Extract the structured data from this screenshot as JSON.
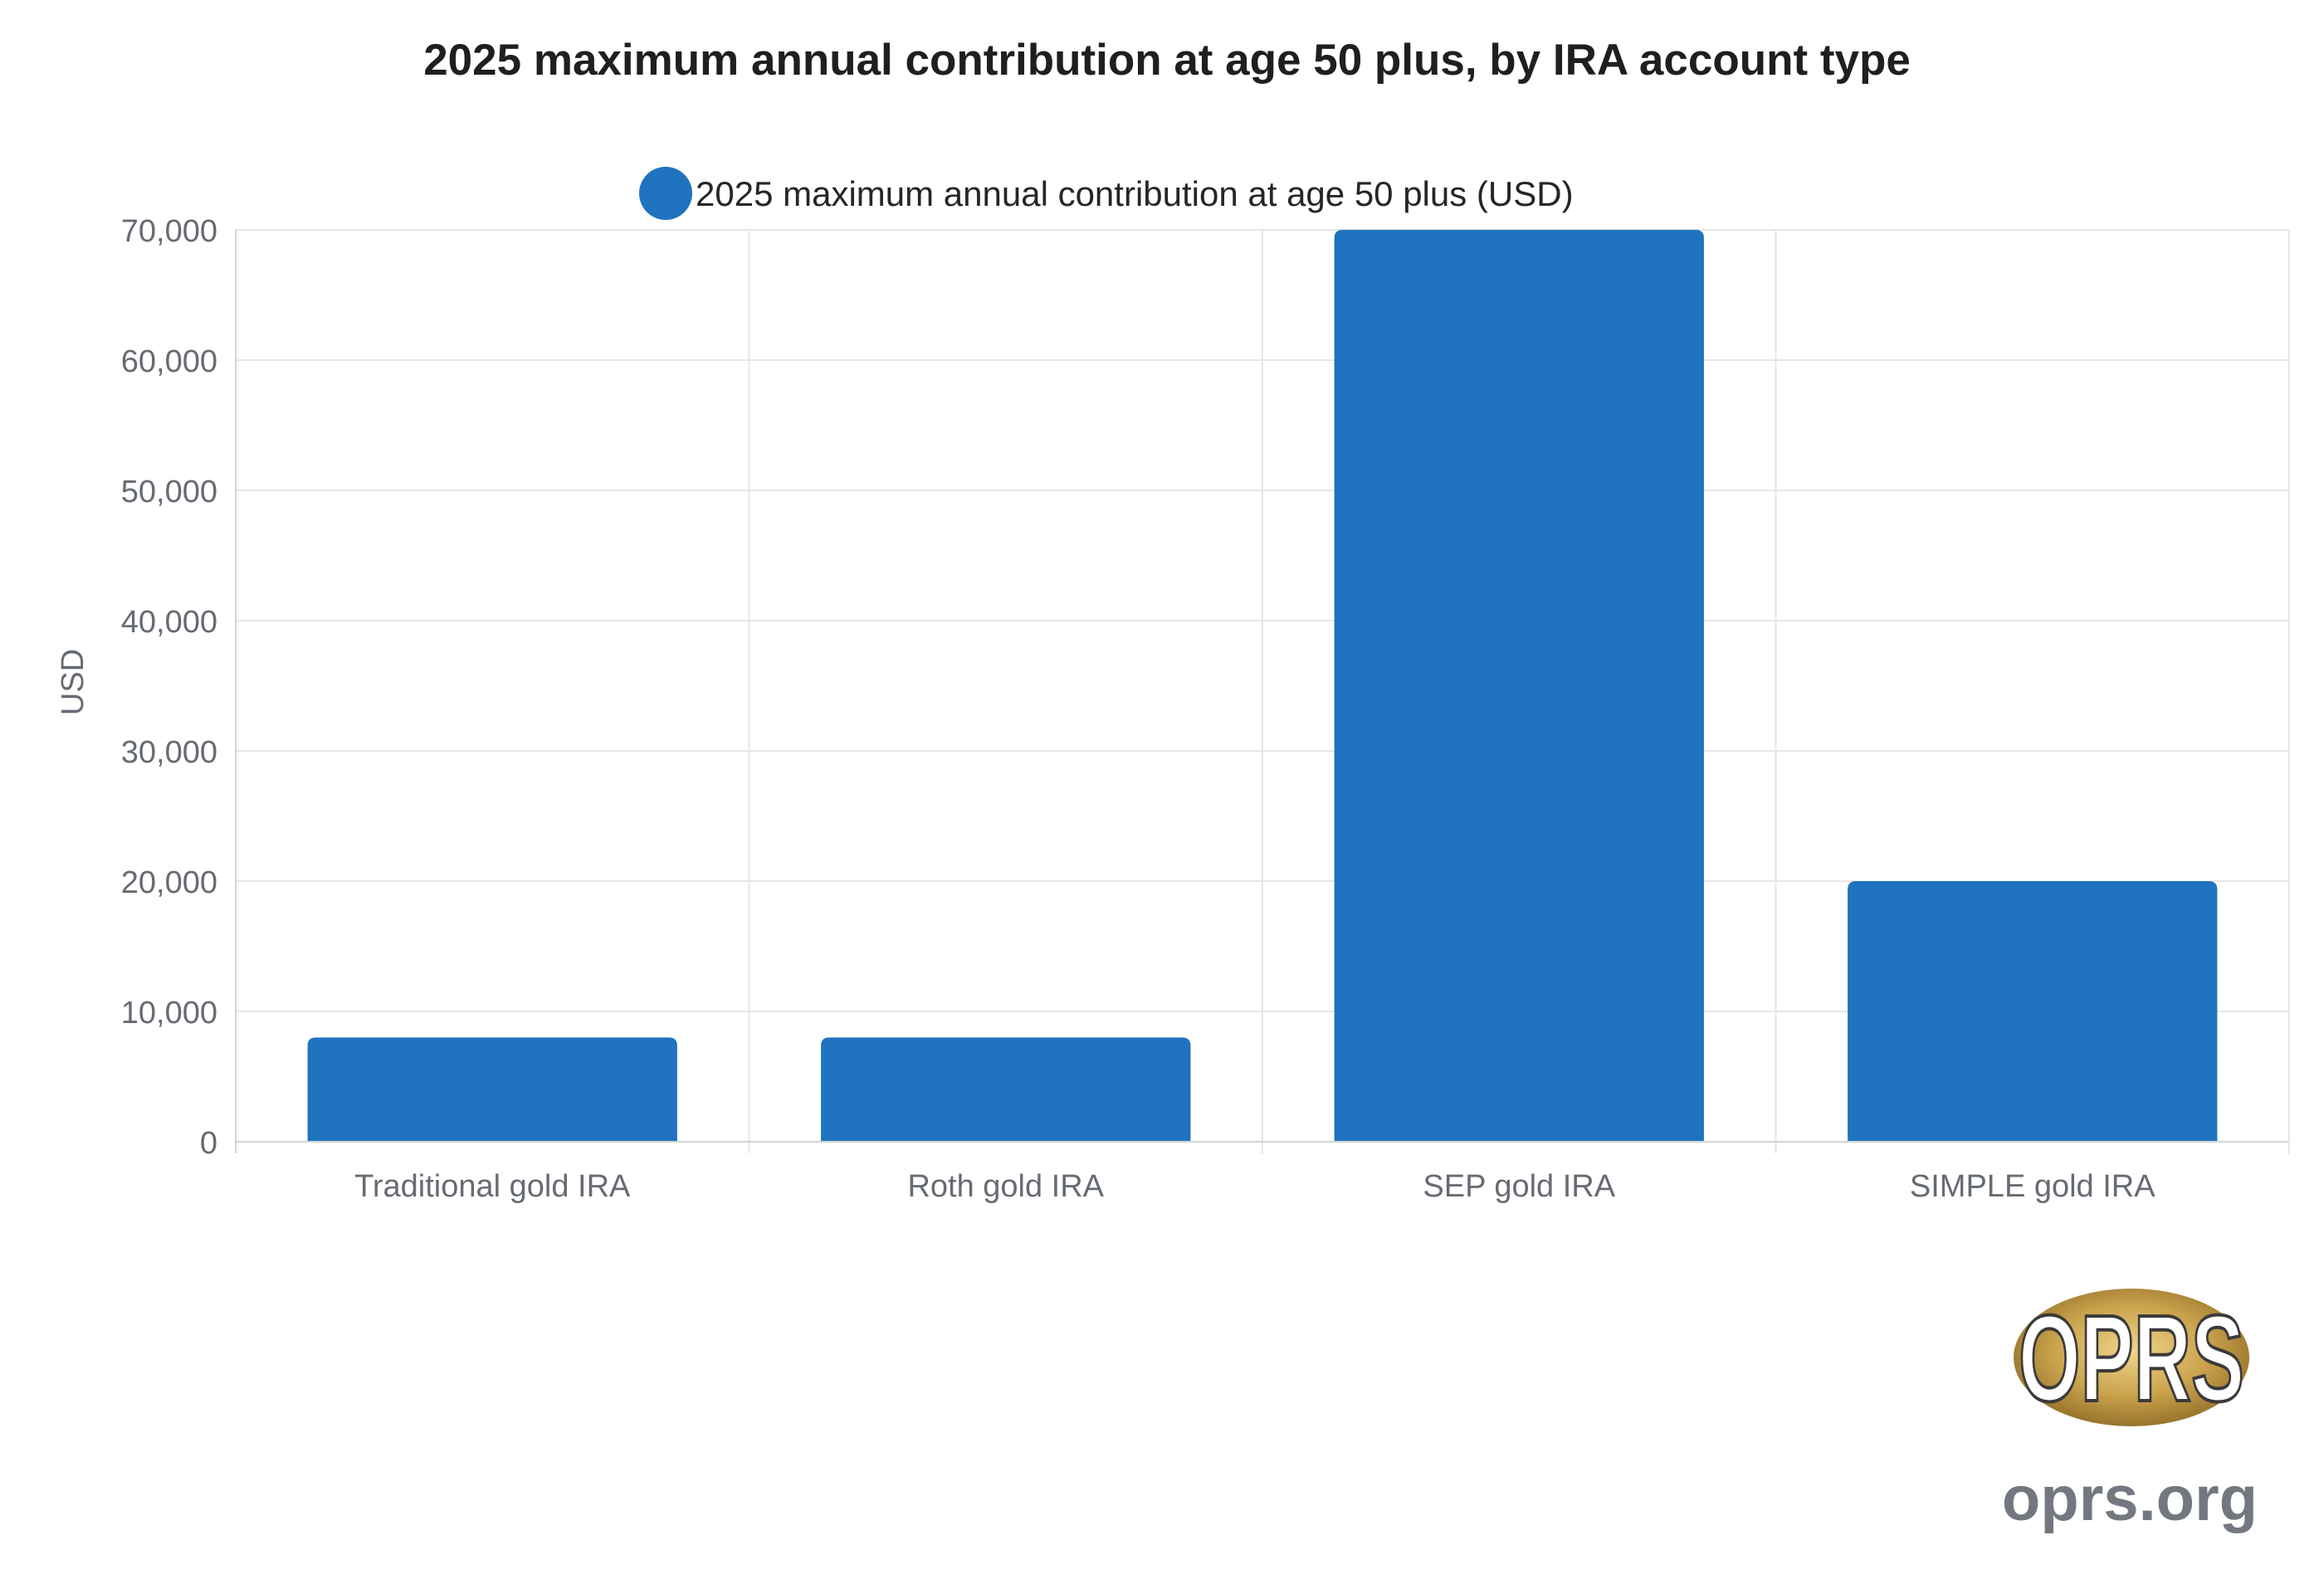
{
  "chart_data": {
    "type": "bar",
    "title": "2025 maximum annual contribution at age 50 plus, by IRA account type",
    "xlabel": "",
    "ylabel": "USD",
    "categories": [
      "Traditional gold IRA",
      "Roth gold IRA",
      "SEP gold IRA",
      "SIMPLE gold IRA"
    ],
    "series": [
      {
        "name": "2025 maximum annual contribution at age 50 plus (USD)",
        "values": [
          8000,
          8000,
          70000,
          20000
        ],
        "color": "#1f73bf"
      }
    ],
    "ylim": [
      0,
      70000
    ],
    "yticks": [
      0,
      10000,
      20000,
      30000,
      40000,
      50000,
      60000,
      70000
    ],
    "ytick_labels": [
      "0",
      "10,000",
      "20,000",
      "30,000",
      "40,000",
      "50,000",
      "60,000",
      "70,000"
    ],
    "grid": true,
    "legend_position": "top-center"
  },
  "watermark": {
    "logo_text": "OPRS",
    "site": "oprs.org"
  }
}
